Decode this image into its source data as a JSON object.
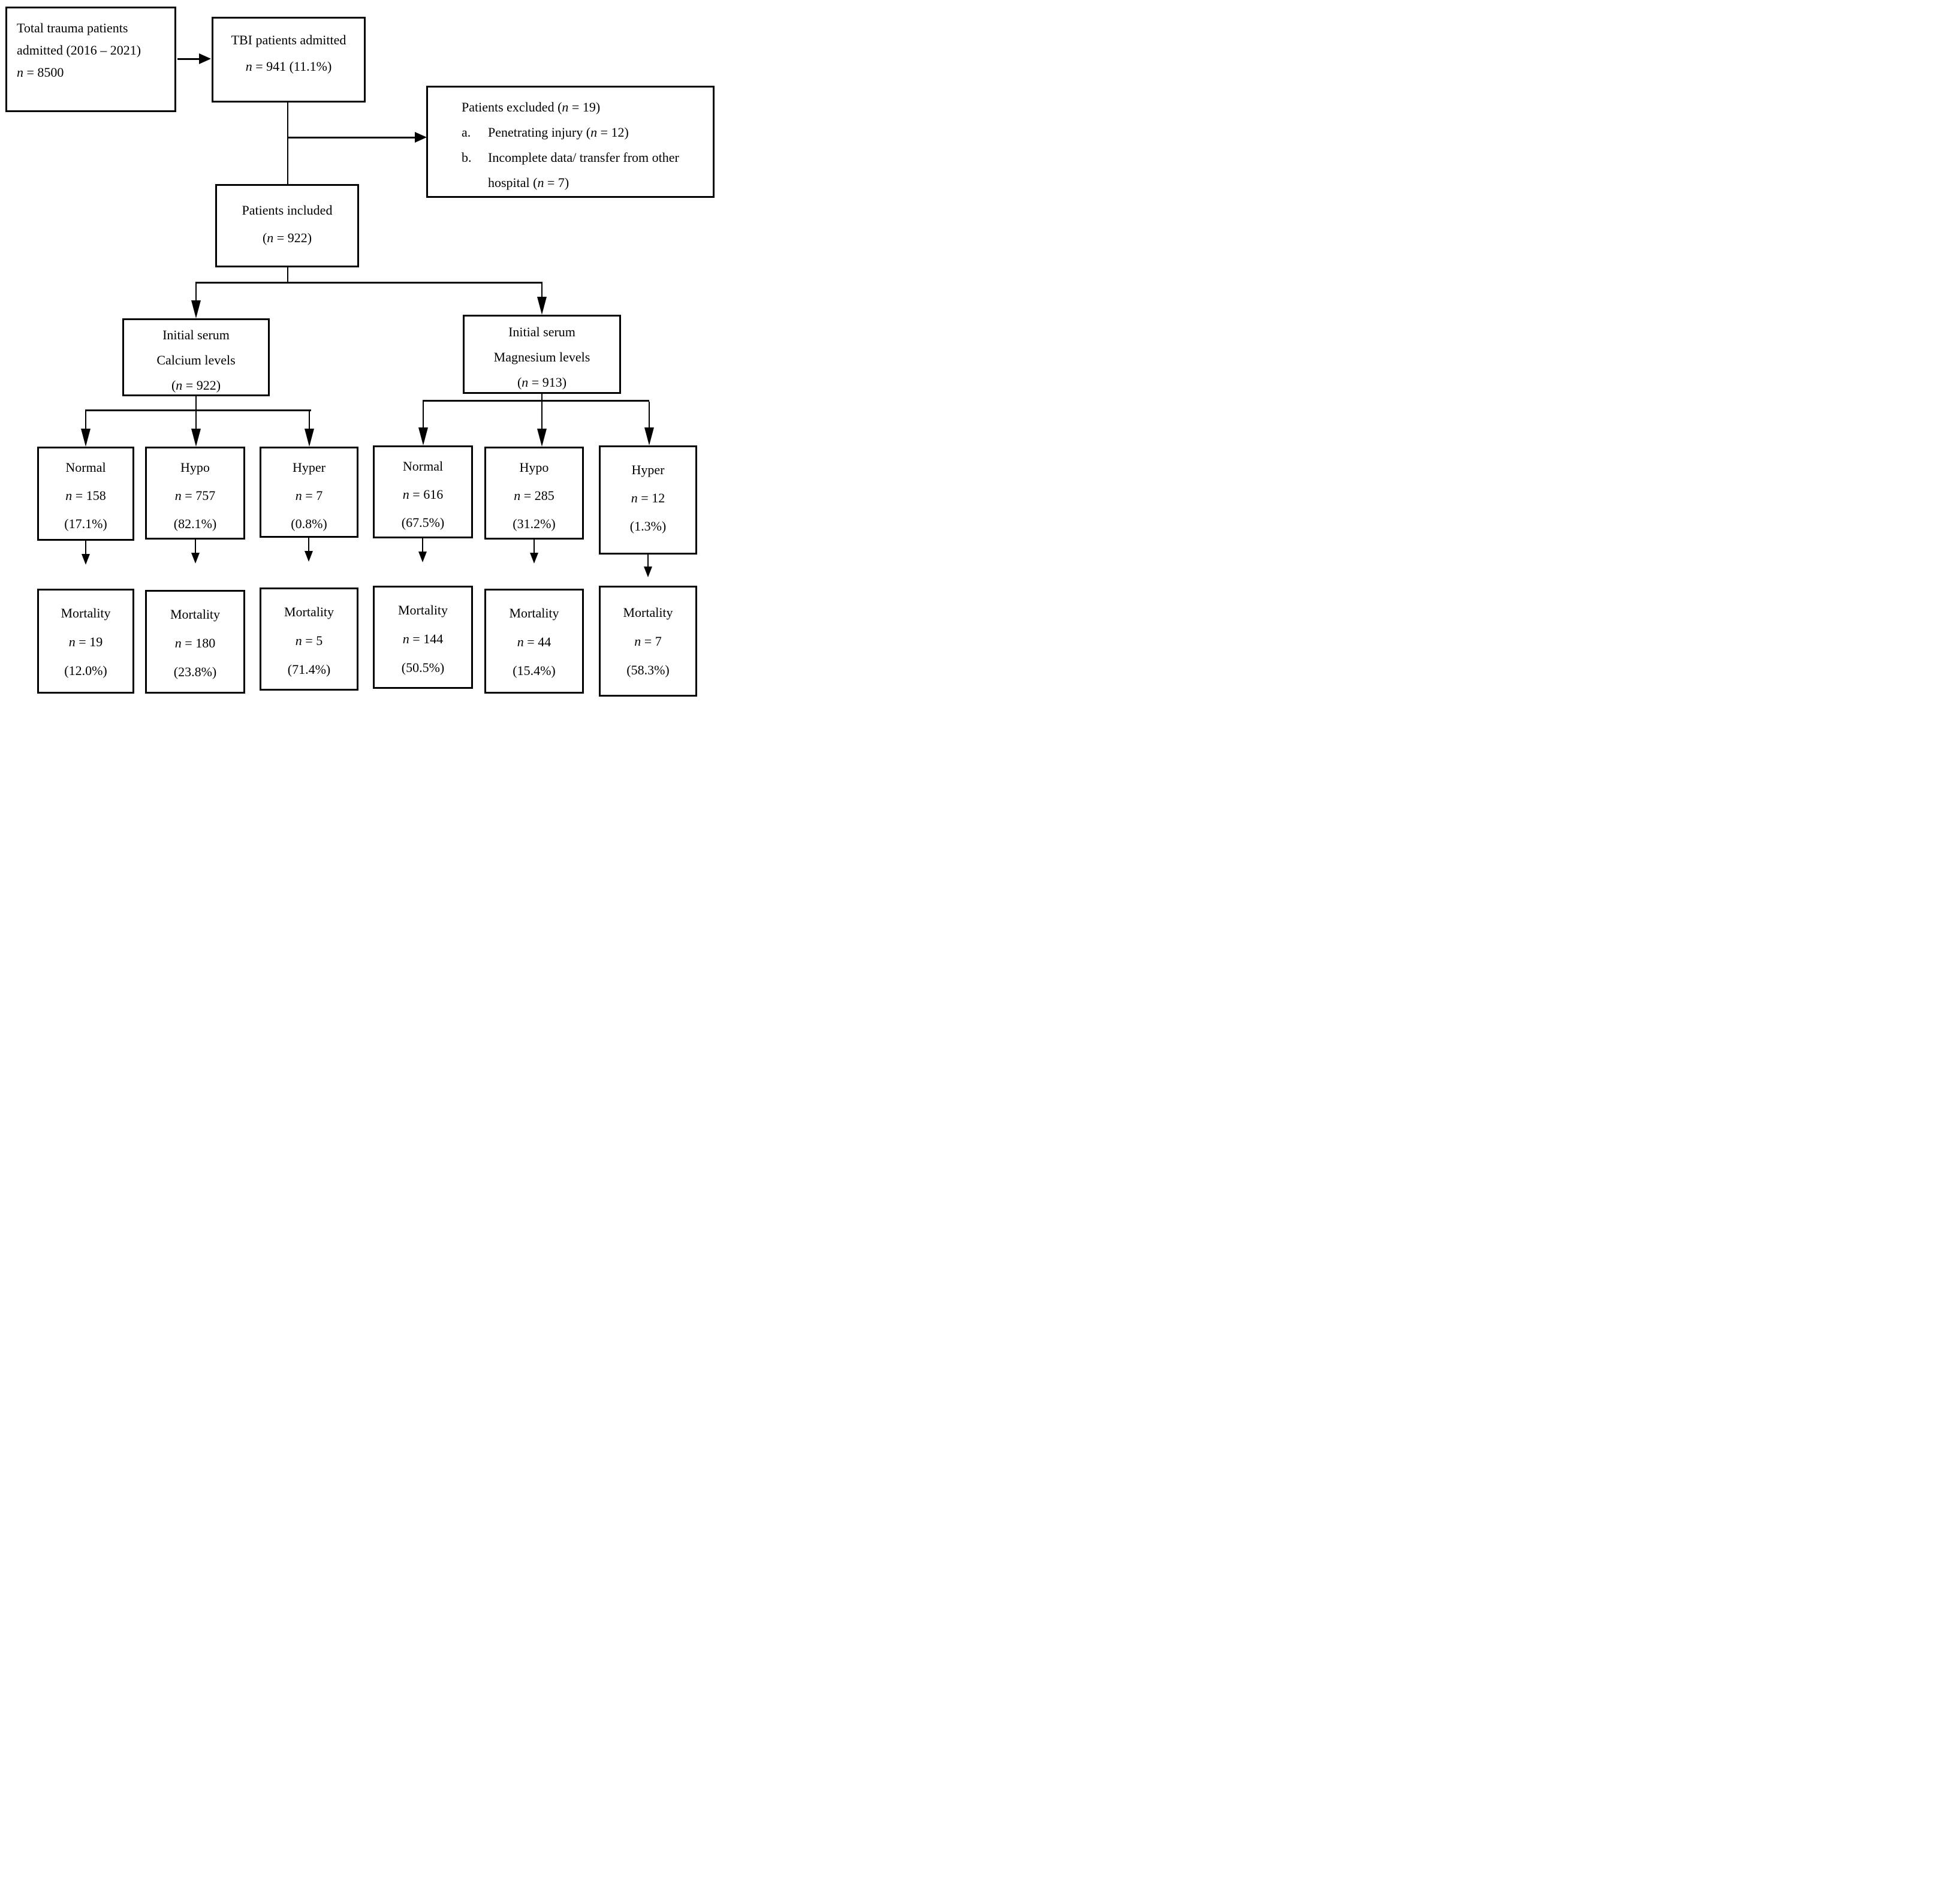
{
  "colors": {
    "ink": "#000000",
    "paper": "#ffffff"
  },
  "diagram": {
    "type": "patient-flow-diagram",
    "nodes": {
      "total_trauma": {
        "lines": [
          "Total trauma patients",
          "admitted (2016 – 2021)",
          "n = 8500"
        ]
      },
      "tbi_admitted": {
        "lines": [
          "TBI patients admitted",
          "n = 941 (11.1%)"
        ]
      },
      "patients_excluded": {
        "title": "Patients excluded (n = 19)",
        "items": [
          {
            "marker": "a.",
            "text": "Penetrating injury (n = 12)"
          },
          {
            "marker": "b.",
            "text": "Incomplete data/ transfer from other hospital (n = 7)"
          }
        ]
      },
      "patients_included": {
        "lines": [
          "Patients included",
          "(n = 922)"
        ]
      },
      "serum_calcium": {
        "lines": [
          "Initial serum",
          "Calcium levels",
          "(n = 922)"
        ]
      },
      "serum_magnesium": {
        "lines": [
          "Initial serum",
          "Magnesium levels",
          "(n = 913)"
        ]
      },
      "ca_normal": {
        "lines": [
          "Normal",
          "n = 158",
          "(17.1%)"
        ]
      },
      "ca_hypo": {
        "lines": [
          "Hypo",
          "n = 757",
          "(82.1%)"
        ]
      },
      "ca_hyper": {
        "lines": [
          "Hyper",
          "n = 7",
          "(0.8%)"
        ]
      },
      "mg_normal": {
        "lines": [
          "Normal",
          "n = 616",
          "(67.5%)"
        ]
      },
      "mg_hypo": {
        "lines": [
          "Hypo",
          "n = 285",
          "(31.2%)"
        ]
      },
      "mg_hyper": {
        "lines": [
          "Hyper",
          "n = 12",
          "(1.3%)"
        ]
      },
      "mort_ca_normal": {
        "lines": [
          "Mortality",
          "n = 19",
          "(12.0%)"
        ]
      },
      "mort_ca_hypo": {
        "lines": [
          "Mortality",
          "n = 180",
          "(23.8%)"
        ]
      },
      "mort_ca_hyper": {
        "lines": [
          "Mortality",
          "n = 5",
          "(71.4%)"
        ]
      },
      "mort_mg_normal": {
        "lines": [
          "Mortality",
          "n = 144",
          "(50.5%)"
        ]
      },
      "mort_mg_hypo": {
        "lines": [
          "Mortality",
          "n = 44",
          "(15.4%)"
        ]
      },
      "mort_mg_hyper": {
        "lines": [
          "Mortality",
          "n = 7",
          "(58.3%)"
        ]
      }
    }
  }
}
